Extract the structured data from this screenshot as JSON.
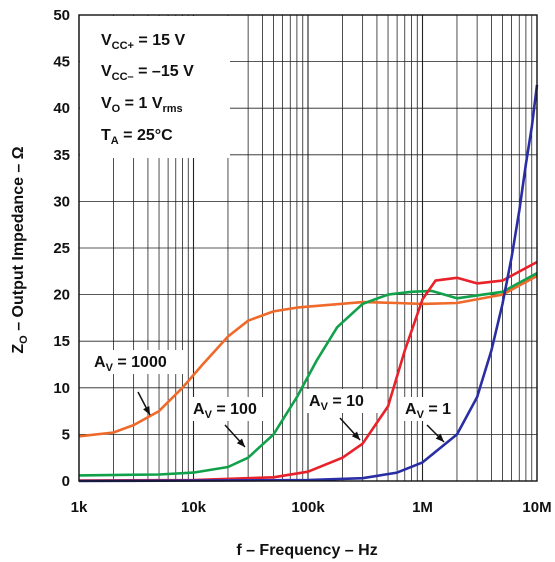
{
  "chart_data": {
    "type": "line",
    "xscale": "log",
    "xlim": [
      1000,
      10000000
    ],
    "ylim": [
      0,
      50
    ],
    "grid": true,
    "xlabel": "f – Frequency – Hz",
    "ylabel": "Z",
    "ylabel_sub": "O",
    "ylabel_rest": " – Output Impedance – Ω",
    "x_ticks": [
      {
        "value": 1000,
        "label": "1k"
      },
      {
        "value": 10000,
        "label": "10k"
      },
      {
        "value": 100000,
        "label": "100k"
      },
      {
        "value": 1000000,
        "label": "1M"
      },
      {
        "value": 10000000,
        "label": "10M"
      }
    ],
    "y_ticks": [
      {
        "value": 0,
        "label": "0"
      },
      {
        "value": 5,
        "label": "5"
      },
      {
        "value": 10,
        "label": "10"
      },
      {
        "value": 15,
        "label": "15"
      },
      {
        "value": 20,
        "label": "20"
      },
      {
        "value": 25,
        "label": "25"
      },
      {
        "value": 30,
        "label": "30"
      },
      {
        "value": 35,
        "label": "35"
      },
      {
        "value": 40,
        "label": "40"
      },
      {
        "value": 45,
        "label": "45"
      },
      {
        "value": 50,
        "label": "50"
      }
    ],
    "conditions": [
      {
        "main": "V",
        "sub": "CC+",
        "rest": " = 15 V"
      },
      {
        "main": "V",
        "sub": "CC–",
        "rest": " = –15 V"
      },
      {
        "main": "V",
        "sub": "O",
        "rest": " = 1 V",
        "sub2": "rms"
      },
      {
        "main": "T",
        "sub": "A",
        "rest": " = 25°C"
      }
    ],
    "series": [
      {
        "label_main": "A",
        "label_sub": "V",
        "label_rest": " = 1000",
        "color": "#ef6a2a",
        "points": [
          [
            1000,
            4.8
          ],
          [
            2000,
            5.2
          ],
          [
            3000,
            6
          ],
          [
            5000,
            7.5
          ],
          [
            8000,
            10
          ],
          [
            12000,
            12.5
          ],
          [
            20000,
            15.5
          ],
          [
            30000,
            17.2
          ],
          [
            50000,
            18.2
          ],
          [
            80000,
            18.6
          ],
          [
            150000,
            18.9
          ],
          [
            300000,
            19.2
          ],
          [
            600000,
            19.1
          ],
          [
            1000000,
            19
          ],
          [
            2000000,
            19.1
          ],
          [
            5000000,
            20
          ],
          [
            10000000,
            22
          ]
        ]
      },
      {
        "label_main": "A",
        "label_sub": "V",
        "label_rest": " = 100",
        "color": "#11a14a",
        "points": [
          [
            1000,
            0.6
          ],
          [
            5000,
            0.7
          ],
          [
            10000,
            0.9
          ],
          [
            20000,
            1.5
          ],
          [
            30000,
            2.5
          ],
          [
            50000,
            5
          ],
          [
            80000,
            9
          ],
          [
            120000,
            13
          ],
          [
            180000,
            16.5
          ],
          [
            300000,
            19
          ],
          [
            500000,
            20
          ],
          [
            800000,
            20.3
          ],
          [
            1200000,
            20.4
          ],
          [
            2000000,
            19.6
          ],
          [
            5000000,
            20.3
          ],
          [
            10000000,
            22.3
          ]
        ]
      },
      {
        "label_main": "A",
        "label_sub": "V",
        "label_rest": " = 10",
        "color": "#e8212a",
        "points": [
          [
            1000,
            0.05
          ],
          [
            10000,
            0.1
          ],
          [
            50000,
            0.4
          ],
          [
            100000,
            1
          ],
          [
            200000,
            2.5
          ],
          [
            300000,
            4
          ],
          [
            500000,
            8
          ],
          [
            700000,
            14
          ],
          [
            1000000,
            19.5
          ],
          [
            1300000,
            21.5
          ],
          [
            2000000,
            21.8
          ],
          [
            3000000,
            21.2
          ],
          [
            5000000,
            21.5
          ],
          [
            10000000,
            23.5
          ]
        ]
      },
      {
        "label_main": "A",
        "label_sub": "V",
        "label_rest": " = 1",
        "color": "#2a2ea4",
        "points": [
          [
            1000,
            0
          ],
          [
            100000,
            0.1
          ],
          [
            300000,
            0.3
          ],
          [
            600000,
            0.9
          ],
          [
            1000000,
            2
          ],
          [
            2000000,
            5
          ],
          [
            3000000,
            9
          ],
          [
            4000000,
            14
          ],
          [
            5000000,
            19
          ],
          [
            6000000,
            24
          ],
          [
            7000000,
            29
          ],
          [
            8000000,
            34
          ],
          [
            9000000,
            38
          ],
          [
            10000000,
            42.5
          ]
        ]
      }
    ]
  }
}
